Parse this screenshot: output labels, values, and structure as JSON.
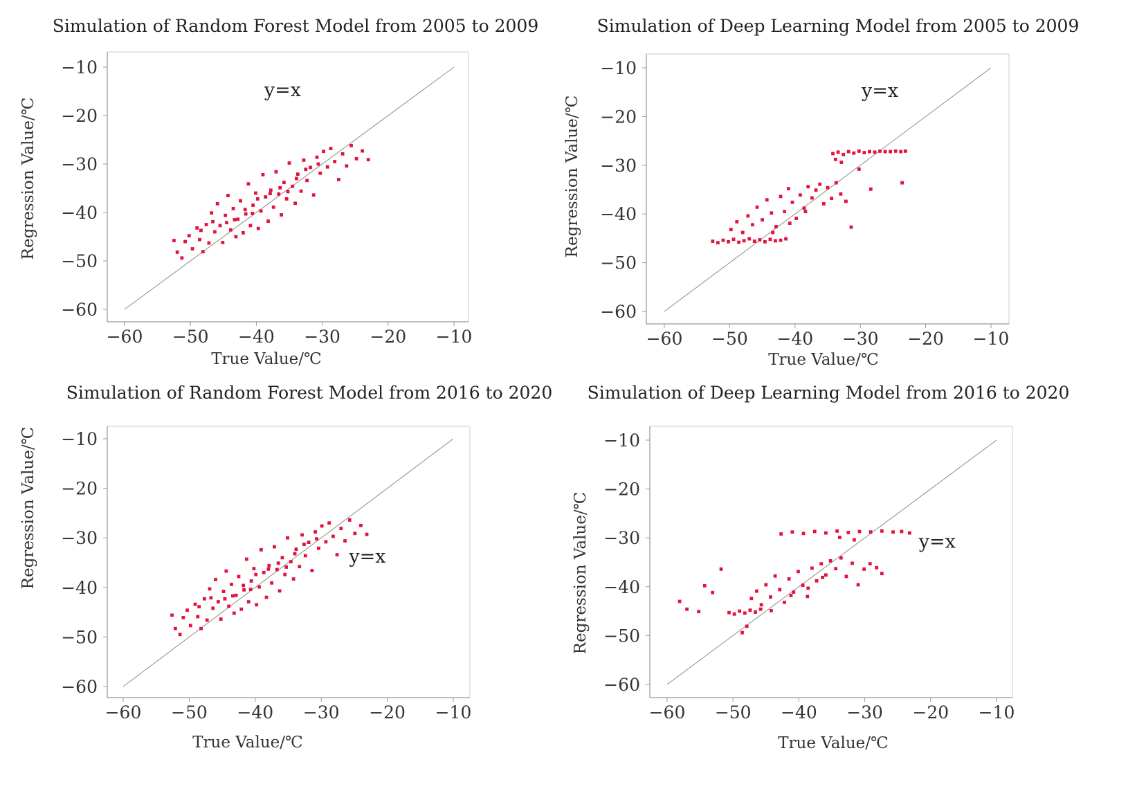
{
  "chart_data": [
    {
      "type": "scatter",
      "title": "Simulation of Random Forest Model from 2005 to 2009",
      "xlabel": "True Value/℃",
      "ylabel": "Regression Value/℃",
      "xlim": [
        -60,
        -10
      ],
      "ylim": [
        -60,
        -10
      ],
      "xticks": [
        -60,
        -50,
        -40,
        -30,
        -20,
        -10
      ],
      "yticks": [
        -10,
        -20,
        -30,
        -40,
        -50,
        -60
      ],
      "xtick_labels": [
        "−60",
        "−50",
        "−40",
        "−30",
        "−20",
        "−10"
      ],
      "ytick_labels": [
        "−10",
        "−20",
        "−30",
        "−40",
        "−50",
        "−60"
      ],
      "reference_line": {
        "label": "y=x",
        "from": [
          -60,
          -60
        ],
        "to": [
          -10,
          -10
        ],
        "label_at": [
          -36,
          -16
        ]
      },
      "point_color": "#e0143c",
      "points": [
        [
          -52.5,
          -45.8
        ],
        [
          -52,
          -48.2
        ],
        [
          -51.3,
          -49.4
        ],
        [
          -50.8,
          -46
        ],
        [
          -50.2,
          -44.8
        ],
        [
          -49.7,
          -47.5
        ],
        [
          -49,
          -43.2
        ],
        [
          -48.6,
          -45.6
        ],
        [
          -48.1,
          -48.1
        ],
        [
          -47.6,
          -42.5
        ],
        [
          -47.2,
          -46.3
        ],
        [
          -46.8,
          -40.1
        ],
        [
          -46.3,
          -44
        ],
        [
          -45.9,
          -38.2
        ],
        [
          -45.5,
          -42.7
        ],
        [
          -45.1,
          -46.2
        ],
        [
          -44.7,
          -40.6
        ],
        [
          -44.3,
          -36.5
        ],
        [
          -43.9,
          -43.6
        ],
        [
          -43.5,
          -39.2
        ],
        [
          -43.1,
          -45
        ],
        [
          -42.8,
          -41.4
        ],
        [
          -42.4,
          -37.6
        ],
        [
          -42,
          -44.2
        ],
        [
          -41.6,
          -40.3
        ],
        [
          -41.2,
          -34.1
        ],
        [
          -40.9,
          -42.7
        ],
        [
          -40.5,
          -38.5
        ],
        [
          -40.1,
          -36
        ],
        [
          -39.7,
          -43.3
        ],
        [
          -39.3,
          -39.7
        ],
        [
          -39,
          -32.2
        ],
        [
          -38.6,
          -36.8
        ],
        [
          -38.2,
          -41.8
        ],
        [
          -37.8,
          -35.4
        ],
        [
          -37.4,
          -38.9
        ],
        [
          -37,
          -31.6
        ],
        [
          -36.6,
          -36.2
        ],
        [
          -36.2,
          -40.5
        ],
        [
          -35.8,
          -33.8
        ],
        [
          -35.4,
          -37.2
        ],
        [
          -35,
          -29.8
        ],
        [
          -34.5,
          -34.6
        ],
        [
          -34.1,
          -38.1
        ],
        [
          -33.7,
          -32.1
        ],
        [
          -33.2,
          -35.6
        ],
        [
          -32.8,
          -29.2
        ],
        [
          -32.3,
          -33.4
        ],
        [
          -31.8,
          -30.7
        ],
        [
          -31.3,
          -36.4
        ],
        [
          -30.8,
          -28.6
        ],
        [
          -30.3,
          -31.9
        ],
        [
          -29.8,
          -27.4
        ],
        [
          -29.2,
          -30.6
        ],
        [
          -28.7,
          -26.8
        ],
        [
          -28.1,
          -29.5
        ],
        [
          -27.5,
          -33.2
        ],
        [
          -26.9,
          -27.9
        ],
        [
          -26.3,
          -30.4
        ],
        [
          -25.6,
          -26.2
        ],
        [
          -24.8,
          -28.9
        ],
        [
          -23.9,
          -27.3
        ],
        [
          -23,
          -29.1
        ],
        [
          -44.5,
          -42.1
        ],
        [
          -41.7,
          -39.4
        ],
        [
          -39.8,
          -37.2
        ],
        [
          -37.9,
          -36.1
        ],
        [
          -36.4,
          -34.9
        ],
        [
          -35.2,
          -35.7
        ],
        [
          -33.9,
          -33
        ],
        [
          -32.5,
          -31.1
        ],
        [
          -30.6,
          -30
        ],
        [
          -48.4,
          -43.7
        ],
        [
          -46.6,
          -41.9
        ],
        [
          -43.3,
          -41.5
        ],
        [
          -40.6,
          -40.2
        ]
      ]
    },
    {
      "type": "scatter",
      "title": "Simulation of Deep Learning Model from 2005 to 2009",
      "xlabel": "True Value/℃",
      "ylabel": "Regression Value/℃",
      "xlim": [
        -60,
        -10
      ],
      "ylim": [
        -60,
        -10
      ],
      "xticks": [
        -60,
        -50,
        -40,
        -30,
        -20,
        -10
      ],
      "yticks": [
        -10,
        -20,
        -30,
        -40,
        -50,
        -60
      ],
      "xtick_labels": [
        "−60",
        "−50",
        "−40",
        "−30",
        "−20",
        "−10"
      ],
      "ytick_labels": [
        "−10",
        "−20",
        "−30",
        "−40",
        "−50",
        "−60"
      ],
      "reference_line": {
        "label": "y=x",
        "from": [
          -60,
          -60
        ],
        "to": [
          -10,
          -10
        ],
        "label_at": [
          -27,
          -16
        ]
      },
      "point_color": "#e0143c",
      "points": [
        [
          -52.6,
          -45.6
        ],
        [
          -51.8,
          -45.9
        ],
        [
          -51,
          -45.4
        ],
        [
          -50.2,
          -45.7
        ],
        [
          -49.4,
          -45.2
        ],
        [
          -48.6,
          -45.8
        ],
        [
          -47.8,
          -45.5
        ],
        [
          -47,
          -45.1
        ],
        [
          -46.2,
          -45.6
        ],
        [
          -45.4,
          -45.3
        ],
        [
          -44.6,
          -45.7
        ],
        [
          -43.8,
          -45.2
        ],
        [
          -43,
          -45.5
        ],
        [
          -42.2,
          -45.4
        ],
        [
          -41.4,
          -45.1
        ],
        [
          -49.8,
          -43.2
        ],
        [
          -48.9,
          -41.6
        ],
        [
          -48,
          -43.8
        ],
        [
          -47.2,
          -40.4
        ],
        [
          -46.5,
          -42.2
        ],
        [
          -45.8,
          -38.6
        ],
        [
          -45,
          -41.2
        ],
        [
          -44.3,
          -37.1
        ],
        [
          -43.6,
          -39.8
        ],
        [
          -42.9,
          -42.6
        ],
        [
          -42.2,
          -36.4
        ],
        [
          -41.6,
          -39.5
        ],
        [
          -41,
          -34.8
        ],
        [
          -40.4,
          -37.6
        ],
        [
          -39.8,
          -40.9
        ],
        [
          -39.2,
          -36.1
        ],
        [
          -38.6,
          -38.8
        ],
        [
          -38,
          -34.4
        ],
        [
          -37.4,
          -36.7
        ],
        [
          -36.8,
          -35.1
        ],
        [
          -36.2,
          -33.9
        ],
        [
          -35.6,
          -37.9
        ],
        [
          -35,
          -34.6
        ],
        [
          -34.4,
          -36.8
        ],
        [
          -33.7,
          -33.6
        ],
        [
          -33,
          -35.9
        ],
        [
          -32.2,
          -37.4
        ],
        [
          -31.4,
          -42.7
        ],
        [
          -34.2,
          -27.6
        ],
        [
          -33.4,
          -27.3
        ],
        [
          -32.6,
          -27.8
        ],
        [
          -31.8,
          -27.2
        ],
        [
          -31,
          -27.5
        ],
        [
          -30.2,
          -27.1
        ],
        [
          -29.4,
          -27.4
        ],
        [
          -28.6,
          -27.2
        ],
        [
          -27.8,
          -27.3
        ],
        [
          -27,
          -27.1
        ],
        [
          -26.2,
          -27.2
        ],
        [
          -25.4,
          -27.2
        ],
        [
          -24.6,
          -27.1
        ],
        [
          -23.8,
          -27.2
        ],
        [
          -23.1,
          -27.1
        ],
        [
          -33.8,
          -28.8
        ],
        [
          -32.9,
          -29.4
        ],
        [
          -28.4,
          -34.9
        ],
        [
          -23.6,
          -33.6
        ],
        [
          -30.2,
          -30.8
        ],
        [
          -43.4,
          -43.8
        ],
        [
          -40.8,
          -41.9
        ],
        [
          -38.4,
          -39.5
        ]
      ]
    },
    {
      "type": "scatter",
      "title": "Simulation of Random Forest Model from 2016  to 2020",
      "xlabel": "True Value/℃",
      "ylabel": "Regression Value/℃",
      "xlim": [
        -60,
        -10
      ],
      "ylim": [
        -60,
        -10
      ],
      "xticks": [
        -60,
        -50,
        -40,
        -30,
        -20,
        -10
      ],
      "yticks": [
        -10,
        -20,
        -30,
        -40,
        -50,
        -60
      ],
      "xtick_labels": [
        "−60",
        "−50",
        "−40",
        "−30",
        "−20",
        "−10"
      ],
      "ytick_labels": [
        "−10",
        "−20",
        "−30",
        "−40",
        "−50",
        "−60"
      ],
      "reference_line": {
        "label": "y=x",
        "from": [
          -60,
          -60
        ],
        "to": [
          -10,
          -10
        ],
        "label_at": [
          -23,
          -35
        ]
      },
      "point_color": "#e0143c",
      "points": [
        [
          -52.6,
          -45.6
        ],
        [
          -52.1,
          -48.3
        ],
        [
          -51.4,
          -49.5
        ],
        [
          -50.9,
          -46.1
        ],
        [
          -50.3,
          -44.6
        ],
        [
          -49.8,
          -47.7
        ],
        [
          -49.1,
          -43.4
        ],
        [
          -48.7,
          -45.9
        ],
        [
          -48.2,
          -48.3
        ],
        [
          -47.7,
          -42.3
        ],
        [
          -47.3,
          -46.6
        ],
        [
          -46.9,
          -40.3
        ],
        [
          -46.4,
          -44.2
        ],
        [
          -46,
          -38.4
        ],
        [
          -45.6,
          -42.9
        ],
        [
          -45.2,
          -46.4
        ],
        [
          -44.8,
          -40.8
        ],
        [
          -44.4,
          -36.7
        ],
        [
          -44,
          -43.8
        ],
        [
          -43.6,
          -39.4
        ],
        [
          -43.2,
          -45.2
        ],
        [
          -42.9,
          -41.6
        ],
        [
          -42.5,
          -37.8
        ],
        [
          -42.1,
          -44.4
        ],
        [
          -41.7,
          -40.5
        ],
        [
          -41.3,
          -34.3
        ],
        [
          -41,
          -42.9
        ],
        [
          -40.6,
          -38.7
        ],
        [
          -40.2,
          -36.2
        ],
        [
          -39.8,
          -43.5
        ],
        [
          -39.4,
          -39.9
        ],
        [
          -39.1,
          -32.4
        ],
        [
          -38.7,
          -37
        ],
        [
          -38.3,
          -42
        ],
        [
          -37.9,
          -35.6
        ],
        [
          -37.5,
          -39.1
        ],
        [
          -37.1,
          -31.8
        ],
        [
          -36.7,
          -36.4
        ],
        [
          -36.3,
          -40.7
        ],
        [
          -35.9,
          -34
        ],
        [
          -35.5,
          -37.4
        ],
        [
          -35.1,
          -30
        ],
        [
          -34.6,
          -34.8
        ],
        [
          -34.2,
          -38.3
        ],
        [
          -33.8,
          -32.3
        ],
        [
          -33.3,
          -35.8
        ],
        [
          -32.9,
          -29.4
        ],
        [
          -32.4,
          -33.6
        ],
        [
          -31.9,
          -30.9
        ],
        [
          -31.4,
          -36.6
        ],
        [
          -30.9,
          -28.8
        ],
        [
          -30.4,
          -32.1
        ],
        [
          -29.9,
          -27.6
        ],
        [
          -29.3,
          -30.8
        ],
        [
          -28.8,
          -27
        ],
        [
          -28.2,
          -29.7
        ],
        [
          -27.6,
          -33.4
        ],
        [
          -27,
          -28.1
        ],
        [
          -26.4,
          -30.6
        ],
        [
          -25.7,
          -26.4
        ],
        [
          -24.9,
          -29.1
        ],
        [
          -24,
          -27.5
        ],
        [
          -23.1,
          -29.3
        ],
        [
          -44.6,
          -42.3
        ],
        [
          -41.8,
          -39.6
        ],
        [
          -39.9,
          -37.4
        ],
        [
          -38,
          -36.3
        ],
        [
          -36.5,
          -35.1
        ],
        [
          -35.3,
          -35.9
        ],
        [
          -34,
          -33.2
        ],
        [
          -32.6,
          -31.3
        ],
        [
          -30.7,
          -30.2
        ],
        [
          -48.5,
          -43.9
        ],
        [
          -46.7,
          -42.1
        ],
        [
          -43.4,
          -41.7
        ],
        [
          -40.7,
          -40.4
        ]
      ]
    },
    {
      "type": "scatter",
      "title": "Simulation of Deep Learning Model from 2016 to 2020",
      "xlabel": "True Value/℃",
      "ylabel": "Regression Value/℃",
      "xlim": [
        -60,
        -10
      ],
      "ylim": [
        -60,
        -10
      ],
      "xticks": [
        -60,
        -50,
        -40,
        -30,
        -20,
        -10
      ],
      "yticks": [
        -10,
        -20,
        -30,
        -40,
        -50,
        -60
      ],
      "xtick_labels": [
        "−60",
        "−50",
        "−40",
        "−30",
        "−20",
        "−10"
      ],
      "ytick_labels": [
        "−10",
        "−20",
        "−30",
        "−40",
        "−50",
        "−60"
      ],
      "reference_line": {
        "label": "y=x",
        "from": [
          -60,
          -60
        ],
        "to": [
          -10,
          -10
        ],
        "label_at": [
          -19,
          -32
        ]
      },
      "point_color": "#e0143c",
      "points": [
        [
          -58.1,
          -43
        ],
        [
          -57,
          -44.6
        ],
        [
          -55.2,
          -45.1
        ],
        [
          -54.3,
          -39.8
        ],
        [
          -53.1,
          -41.2
        ],
        [
          -51.8,
          -36.4
        ],
        [
          -50.6,
          -45.3
        ],
        [
          -49.8,
          -45.6
        ],
        [
          -49,
          -45
        ],
        [
          -48.2,
          -45.4
        ],
        [
          -47.4,
          -44.8
        ],
        [
          -46.6,
          -45.2
        ],
        [
          -45.8,
          -44.6
        ],
        [
          -48.6,
          -49.4
        ],
        [
          -47.9,
          -48.1
        ],
        [
          -47.2,
          -42.4
        ],
        [
          -46.4,
          -40.9
        ],
        [
          -45.7,
          -43.7
        ],
        [
          -45,
          -39.6
        ],
        [
          -44.3,
          -42.1
        ],
        [
          -43.6,
          -37.8
        ],
        [
          -42.9,
          -40.6
        ],
        [
          -42.2,
          -43.2
        ],
        [
          -41.5,
          -38.4
        ],
        [
          -40.8,
          -41.1
        ],
        [
          -40.1,
          -36.9
        ],
        [
          -39.4,
          -39.7
        ],
        [
          -38.7,
          -42
        ],
        [
          -38,
          -36.2
        ],
        [
          -37.3,
          -38.8
        ],
        [
          -36.6,
          -35.3
        ],
        [
          -35.9,
          -37.6
        ],
        [
          -35.2,
          -34.7
        ],
        [
          -34.4,
          -36.3
        ],
        [
          -33.6,
          -34.1
        ],
        [
          -32.8,
          -37.9
        ],
        [
          -31.9,
          -35.2
        ],
        [
          -31,
          -39.6
        ],
        [
          -30.1,
          -36.4
        ],
        [
          -29.2,
          -35.3
        ],
        [
          -28.2,
          -36.1
        ],
        [
          -27.4,
          -37.3
        ],
        [
          -42.7,
          -29.2
        ],
        [
          -41,
          -28.8
        ],
        [
          -39.3,
          -29.1
        ],
        [
          -37.6,
          -28.7
        ],
        [
          -35.9,
          -29
        ],
        [
          -34.2,
          -28.6
        ],
        [
          -32.5,
          -28.9
        ],
        [
          -30.8,
          -28.7
        ],
        [
          -29.1,
          -28.8
        ],
        [
          -27.4,
          -28.6
        ],
        [
          -25.7,
          -28.8
        ],
        [
          -24.4,
          -28.7
        ],
        [
          -23.2,
          -29
        ],
        [
          -33.8,
          -29.9
        ],
        [
          -31.6,
          -30.4
        ],
        [
          -44.2,
          -44.9
        ],
        [
          -41.2,
          -41.8
        ],
        [
          -38.6,
          -40.3
        ],
        [
          -36.4,
          -38.1
        ]
      ]
    }
  ]
}
